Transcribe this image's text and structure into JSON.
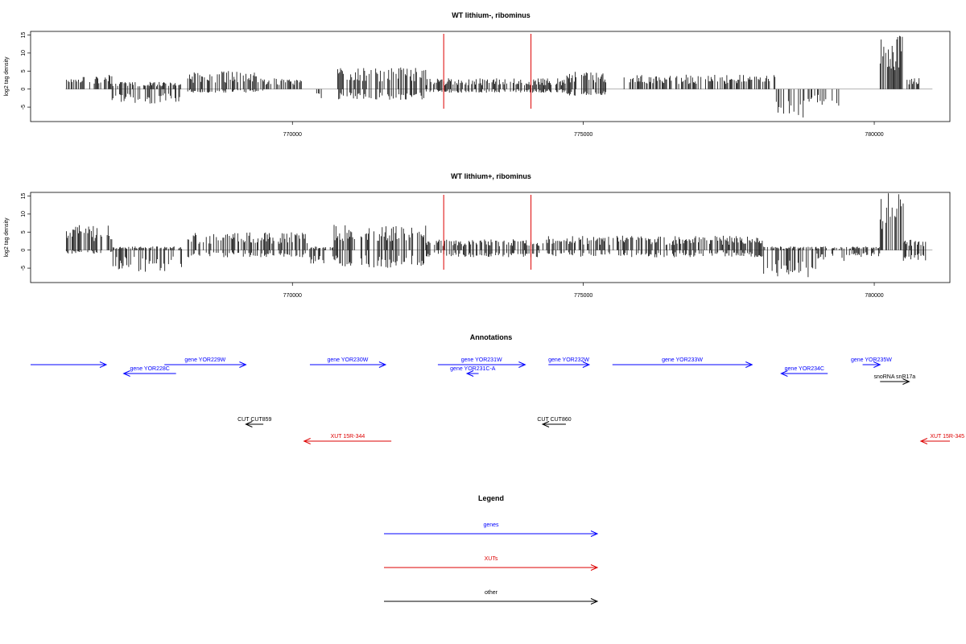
{
  "colors": {
    "genes": "#0000ff",
    "xuts": "#dd0000",
    "other": "#000000",
    "marker": "#dd0000",
    "axis": "#000000"
  },
  "chart_data": [
    {
      "type": "bar",
      "title": "WT lithium-, ribominus",
      "ylabel": "log2 tag density",
      "xlabel": "",
      "xlim": [
        765500,
        781300
      ],
      "ylim": [
        -9,
        16
      ],
      "yticks": [
        -5,
        0,
        5,
        10,
        15
      ],
      "xticks": [
        770000,
        775000,
        780000
      ],
      "marker_lines_x": [
        772600,
        774100
      ],
      "segments": [
        {
          "start": 766100,
          "end": 766900,
          "pos": 4,
          "neg": 0
        },
        {
          "start": 766900,
          "end": 768100,
          "pos": 2,
          "neg": -4
        },
        {
          "start": 768200,
          "end": 769500,
          "pos": 5,
          "neg": -1
        },
        {
          "start": 769500,
          "end": 770200,
          "pos": 3,
          "neg": 0
        },
        {
          "start": 770400,
          "end": 770500,
          "pos": 0,
          "neg": -3
        },
        {
          "start": 770700,
          "end": 772300,
          "pos": 6,
          "neg": -3
        },
        {
          "start": 772300,
          "end": 774700,
          "pos": 3,
          "neg": -1
        },
        {
          "start": 774700,
          "end": 775400,
          "pos": 5,
          "neg": -2
        },
        {
          "start": 775700,
          "end": 778300,
          "pos": 4,
          "neg": 0
        },
        {
          "start": 778300,
          "end": 778800,
          "pos": 0,
          "neg": -8
        },
        {
          "start": 778800,
          "end": 779400,
          "pos": 0,
          "neg": -5
        },
        {
          "start": 780100,
          "end": 780500,
          "pos": 15,
          "neg": 0
        },
        {
          "start": 780500,
          "end": 780800,
          "pos": 3,
          "neg": 0
        }
      ]
    },
    {
      "type": "bar",
      "title": "WT lithium+, ribominus",
      "ylabel": "log2 tag density",
      "xlabel": "",
      "xlim": [
        765500,
        781300
      ],
      "ylim": [
        -9,
        16
      ],
      "yticks": [
        -5,
        0,
        5,
        10,
        15
      ],
      "xticks": [
        770000,
        775000,
        780000
      ],
      "marker_lines_x": [
        772600,
        774100
      ],
      "segments": [
        {
          "start": 766100,
          "end": 766900,
          "pos": 7,
          "neg": -1
        },
        {
          "start": 766900,
          "end": 768100,
          "pos": 1,
          "neg": -6
        },
        {
          "start": 768200,
          "end": 770300,
          "pos": 5,
          "neg": -2
        },
        {
          "start": 770300,
          "end": 770700,
          "pos": 1,
          "neg": -4
        },
        {
          "start": 770700,
          "end": 772300,
          "pos": 7,
          "neg": -5
        },
        {
          "start": 772300,
          "end": 774400,
          "pos": 3,
          "neg": -2
        },
        {
          "start": 774400,
          "end": 778100,
          "pos": 4,
          "neg": -2
        },
        {
          "start": 778100,
          "end": 779000,
          "pos": 1,
          "neg": -8
        },
        {
          "start": 779000,
          "end": 779600,
          "pos": 1,
          "neg": -3
        },
        {
          "start": 779600,
          "end": 780100,
          "pos": 1,
          "neg": -2
        },
        {
          "start": 780100,
          "end": 780500,
          "pos": 16,
          "neg": 0
        },
        {
          "start": 780500,
          "end": 780900,
          "pos": 3,
          "neg": -3
        }
      ]
    }
  ],
  "annotations": {
    "title": "Annotations",
    "features": [
      {
        "label": "",
        "start": 765500,
        "end": 766800,
        "strand": "+",
        "row": 0,
        "cls": "gene"
      },
      {
        "label": "gene YOR228C",
        "start": 767100,
        "end": 768000,
        "strand": "-",
        "row": 1,
        "cls": "gene"
      },
      {
        "label": "gene YOR229W",
        "start": 767800,
        "end": 769200,
        "strand": "+",
        "row": 0,
        "cls": "gene"
      },
      {
        "label": "gene YOR230W",
        "start": 770300,
        "end": 771600,
        "strand": "+",
        "row": 0,
        "cls": "gene"
      },
      {
        "label": "gene YOR231W",
        "start": 772500,
        "end": 774000,
        "strand": "+",
        "row": 0,
        "cls": "gene"
      },
      {
        "label": "gene YOR231C-A",
        "start": 773000,
        "end": 773200,
        "strand": "-",
        "row": 1,
        "cls": "gene"
      },
      {
        "label": "gene YOR232W",
        "start": 774400,
        "end": 775100,
        "strand": "+",
        "row": 0,
        "cls": "gene"
      },
      {
        "label": "gene YOR233W",
        "start": 775500,
        "end": 777900,
        "strand": "+",
        "row": 0,
        "cls": "gene"
      },
      {
        "label": "gene YOR234C",
        "start": 778400,
        "end": 779200,
        "strand": "-",
        "row": 1,
        "cls": "gene"
      },
      {
        "label": "gene YOR235W",
        "start": 779800,
        "end": 780100,
        "strand": "+",
        "row": 0,
        "cls": "gene"
      },
      {
        "label": "snoRNA snR17a",
        "start": 780100,
        "end": 780600,
        "strand": "+",
        "row": 2,
        "cls": "other"
      },
      {
        "label": "CUT CUT859",
        "start": 769200,
        "end": 769500,
        "strand": "-",
        "row": 3,
        "cls": "other"
      },
      {
        "label": "CUT CUT860",
        "start": 774300,
        "end": 774700,
        "strand": "-",
        "row": 3,
        "cls": "other"
      },
      {
        "label": "XUT 15R-344",
        "start": 770200,
        "end": 771700,
        "strand": "-",
        "row": 4,
        "cls": "xut"
      },
      {
        "label": "XUT 15R-345",
        "start": 780800,
        "end": 781300,
        "strand": "-",
        "row": 4,
        "cls": "xut"
      }
    ]
  },
  "legend": {
    "title": "Legend",
    "items": [
      {
        "label": "genes",
        "cls": "gene"
      },
      {
        "label": "XUTs",
        "cls": "xut"
      },
      {
        "label": "other",
        "cls": "other"
      }
    ]
  }
}
